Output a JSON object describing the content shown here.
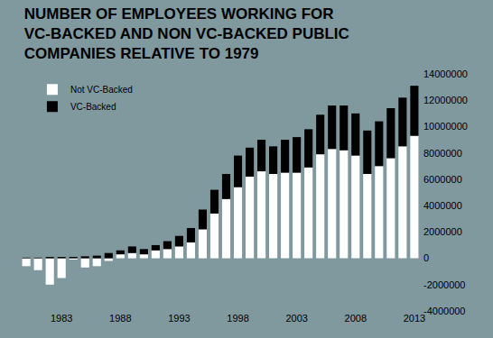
{
  "chart_data": {
    "type": "bar",
    "title": "NUMBER OF EMPLOYEES WORKING FOR VC-BACKED AND NON VC-BACKED PUBLIC COMPANIES RELATIVE TO 1979",
    "categories": [
      null,
      null,
      null,
      "1983",
      null,
      null,
      null,
      null,
      "1988",
      null,
      null,
      null,
      null,
      "1993",
      null,
      null,
      null,
      null,
      "1998",
      null,
      null,
      null,
      null,
      "2003",
      null,
      null,
      null,
      null,
      "2008",
      null,
      null,
      null,
      null,
      "2013"
    ],
    "series": [
      {
        "name": "Not VC-Backed",
        "color": "#ffffff",
        "values": [
          -600000,
          -900000,
          -2000000,
          -1500000,
          -100000,
          -700000,
          -600000,
          -200000,
          300000,
          400000,
          300000,
          600000,
          700000,
          900000,
          1200000,
          2200000,
          3400000,
          4500000,
          5400000,
          6200000,
          6600000,
          6400000,
          6500000,
          6500000,
          6900000,
          7900000,
          8300000,
          8200000,
          7800000,
          6400000,
          7000000,
          7600000,
          8500000,
          9300000
        ]
      },
      {
        "name": "VC-Backed",
        "color": "#000000",
        "values": [
          50000,
          50000,
          100000,
          100000,
          100000,
          150000,
          200000,
          400000,
          300000,
          500000,
          400000,
          400000,
          600000,
          800000,
          1100000,
          1500000,
          1800000,
          1900000,
          2400000,
          2200000,
          2400000,
          2100000,
          2500000,
          2700000,
          2900000,
          3000000,
          3300000,
          3400000,
          3200000,
          3300000,
          3400000,
          3800000,
          3700000,
          3800000
        ]
      }
    ],
    "ylim": [
      -4000000,
      14000000
    ],
    "yticks": [
      -4000000,
      -2000000,
      0,
      2000000,
      4000000,
      6000000,
      8000000,
      10000000,
      12000000,
      14000000
    ],
    "stacked": true,
    "legend": "upper left",
    "grid": false
  }
}
